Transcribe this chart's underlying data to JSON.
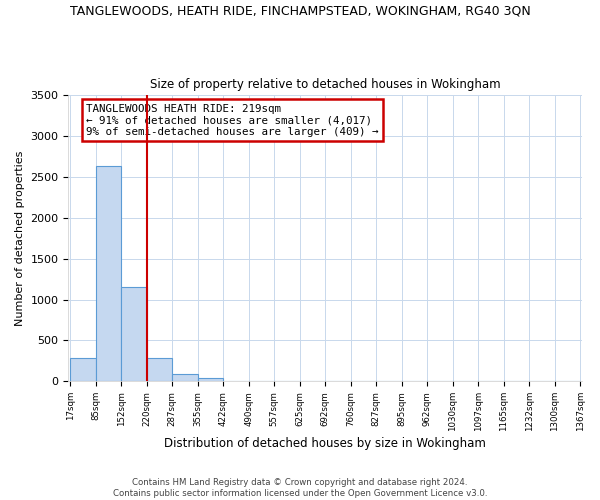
{
  "title": "TANGLEWOODS, HEATH RIDE, FINCHAMPSTEAD, WOKINGHAM, RG40 3QN",
  "subtitle": "Size of property relative to detached houses in Wokingham",
  "xlabel": "Distribution of detached houses by size in Wokingham",
  "ylabel": "Number of detached properties",
  "bar_edges": [
    17,
    85,
    152,
    220,
    287,
    355,
    422,
    490,
    557,
    625,
    692,
    760,
    827,
    895,
    962,
    1030,
    1097,
    1165,
    1232,
    1300,
    1367
  ],
  "bar_heights": [
    280,
    2630,
    1150,
    290,
    90,
    45,
    0,
    0,
    0,
    0,
    0,
    0,
    0,
    0,
    0,
    0,
    0,
    0,
    0,
    0
  ],
  "bar_color": "#c5d8f0",
  "bar_edgecolor": "#5b9bd5",
  "property_line_x": 220,
  "ylim": [
    0,
    3500
  ],
  "annotation_title": "TANGLEWOODS HEATH RIDE: 219sqm",
  "annotation_line1": "← 91% of detached houses are smaller (4,017)",
  "annotation_line2": "9% of semi-detached houses are larger (409) →",
  "annotation_box_color": "#ffffff",
  "annotation_box_edgecolor": "#cc0000",
  "vline_color": "#cc0000",
  "footer1": "Contains HM Land Registry data © Crown copyright and database right 2024.",
  "footer2": "Contains public sector information licensed under the Open Government Licence v3.0.",
  "background_color": "#ffffff",
  "grid_color": "#c8d8ec"
}
